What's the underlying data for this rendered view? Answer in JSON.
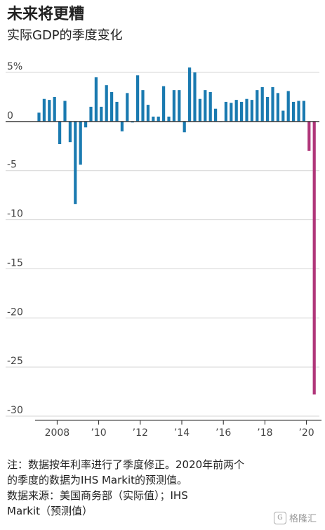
{
  "header": {
    "title": "未来将更糟",
    "subtitle": "实际GDP的季度变化"
  },
  "notes": {
    "note_line1": "注：数据按年利率进行了季度修正。2020年前两个",
    "note_line2": "的季度的数据为IHS Markit的预测值。",
    "source_line1": "数据来源：美国商务部（实际值）；IHS",
    "source_line2": "Markit（预测值）"
  },
  "watermark": {
    "text": "格隆汇",
    "logo_icon": "gelonghui-logo-icon"
  },
  "colors": {
    "actual": "#1a7ab0",
    "forecast": "#b0367a",
    "grid": "#d4d4d4",
    "axis": "#222222"
  },
  "chart_data": {
    "type": "bar",
    "title": "未来将更糟",
    "subtitle": "实际GDP的季度变化",
    "ylim": [
      -30,
      5
    ],
    "y_ticks": [
      5,
      0,
      -5,
      -10,
      -15,
      -20,
      -25,
      -30
    ],
    "y_tick_labels": [
      "5%",
      "0",
      "-5",
      "-10",
      "-15",
      "-20",
      "-25",
      "-30"
    ],
    "x_ticks": [
      {
        "quarter_index": 4,
        "label": "2008"
      },
      {
        "quarter_index": 12,
        "label": "’10"
      },
      {
        "quarter_index": 20,
        "label": "’12"
      },
      {
        "quarter_index": 28,
        "label": "’14"
      },
      {
        "quarter_index": 36,
        "label": "’16"
      },
      {
        "quarter_index": 44,
        "label": "’18"
      },
      {
        "quarter_index": 52,
        "label": "’20"
      }
    ],
    "grid": true,
    "series": [
      {
        "kind": "actual",
        "start_quarter": "2007-Q1",
        "values": [
          0.9,
          2.3,
          2.2,
          2.5,
          -2.3,
          2.1,
          -2.1,
          -8.4,
          -4.4,
          -0.6,
          1.5,
          4.5,
          1.5,
          3.7,
          3.0,
          2.0,
          -1.0,
          2.9,
          -0.1,
          4.7,
          3.2,
          1.7,
          0.5,
          0.5,
          3.6,
          0.5,
          3.2,
          3.2,
          -1.1,
          5.5,
          5.0,
          2.3,
          3.2,
          3.0,
          1.3,
          0.0,
          2.0,
          1.9,
          2.2,
          2.0,
          2.3,
          2.2,
          3.2,
          3.5,
          2.5,
          3.5,
          2.9,
          1.1,
          3.1,
          2.0,
          2.1,
          2.1
        ]
      },
      {
        "kind": "forecast",
        "start_quarter": "2020-Q1",
        "values": [
          -3.0,
          -27.8
        ]
      }
    ]
  }
}
